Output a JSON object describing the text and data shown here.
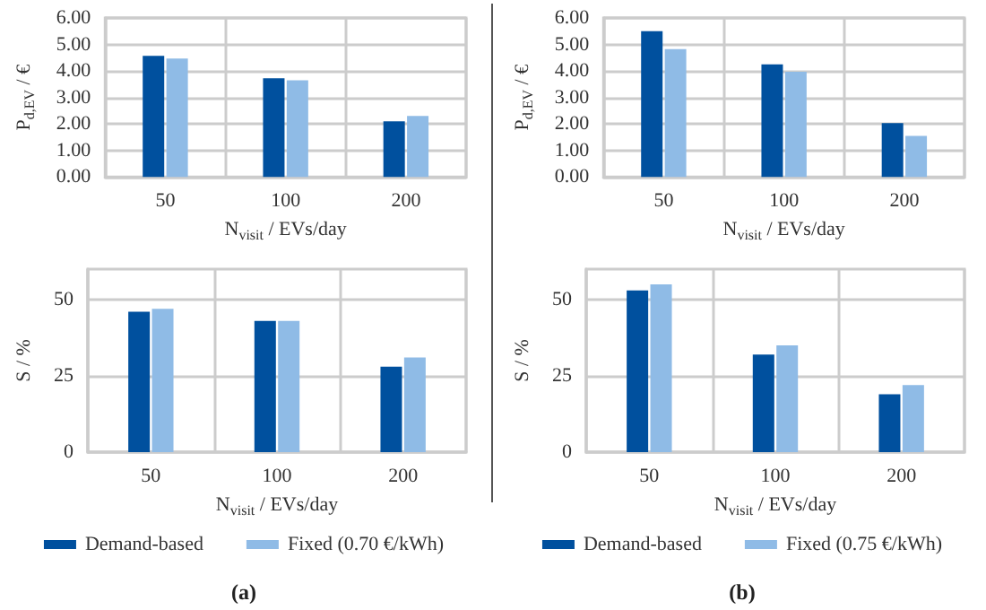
{
  "chart_data": [
    {
      "type": "bar",
      "categories": [
        "50",
        "100",
        "200"
      ],
      "xlabel": "N$_{visit}$ / EVs/day",
      "ylabel": "P$_{d,EV}$ / €",
      "ylim": [
        0,
        6
      ],
      "yticks": [
        {
          "value": 0,
          "label": "0.00"
        },
        {
          "value": 1,
          "label": "1.00"
        },
        {
          "value": 2,
          "label": "2.00"
        },
        {
          "value": 3,
          "label": "3.00"
        },
        {
          "value": 4,
          "label": "4.00"
        },
        {
          "value": 5,
          "label": "5.00"
        },
        {
          "value": 6,
          "label": "6.00"
        }
      ],
      "grid": true,
      "series": [
        {
          "color": "#00509e",
          "values": [
            4.57,
            3.72,
            2.1
          ]
        },
        {
          "color": "#8fbbe6",
          "values": [
            4.47,
            3.65,
            2.3
          ]
        }
      ]
    },
    {
      "type": "bar",
      "categories": [
        "50",
        "100",
        "200"
      ],
      "xlabel": "N$_{visit}$ / EVs/day",
      "ylabel": "P$_{d,EV}$ / €",
      "ylim": [
        0,
        6
      ],
      "yticks": [
        {
          "value": 0,
          "label": "0.00"
        },
        {
          "value": 1,
          "label": "1.00"
        },
        {
          "value": 2,
          "label": "2.00"
        },
        {
          "value": 3,
          "label": "3.00"
        },
        {
          "value": 4,
          "label": "4.00"
        },
        {
          "value": 5,
          "label": "5.00"
        },
        {
          "value": 6,
          "label": "6.00"
        }
      ],
      "grid": true,
      "series": [
        {
          "color": "#00509e",
          "values": [
            5.5,
            4.25,
            2.03
          ]
        },
        {
          "color": "#8fbbe6",
          "values": [
            4.82,
            3.97,
            1.55
          ]
        }
      ]
    },
    {
      "type": "bar",
      "categories": [
        "50",
        "100",
        "200"
      ],
      "xlabel": "N$_{visit}$ / EVs/day",
      "ylabel": "S / %",
      "ylim": [
        0,
        60
      ],
      "yticks": [
        0,
        25,
        50
      ],
      "grid": true,
      "legend": "bottom",
      "annotations": [
        "(a)"
      ],
      "series": [
        {
          "name": "Demand-based",
          "color": "#00509e",
          "values": [
            46,
            43,
            28
          ]
        },
        {
          "name": "Fixed (0.70 €/kWh)",
          "color": "#8fbbe6",
          "values": [
            47,
            43,
            31
          ]
        }
      ]
    },
    {
      "type": "bar",
      "categories": [
        "50",
        "100",
        "200"
      ],
      "xlabel": "N$_{visit}$ / EVs/day",
      "ylabel": "S / %",
      "ylim": [
        0,
        60
      ],
      "yticks": [
        0,
        25,
        50
      ],
      "grid": true,
      "legend": "bottom",
      "annotations": [
        "(b)"
      ],
      "series": [
        {
          "name": "Demand-based",
          "color": "#00509e",
          "values": [
            53,
            32,
            19
          ]
        },
        {
          "name": "Fixed (0.75 €/kWh)",
          "color": "#8fbbe6",
          "values": [
            55,
            35,
            22
          ]
        }
      ]
    }
  ]
}
